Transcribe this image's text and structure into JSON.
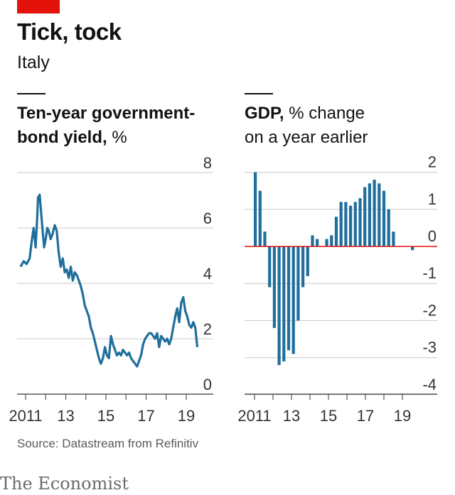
{
  "header": {
    "title": "Tick, tock",
    "subtitle": "Italy"
  },
  "footer": {
    "source": "Source: Datastream from Refinitiv",
    "brand": "The Economist"
  },
  "colors": {
    "accent": "#e3120b",
    "series": "#1f6e9c",
    "zero_line": "#e3120b",
    "grid": "#c8c8c8"
  },
  "chart_data": [
    {
      "type": "line",
      "title_bold": "Ten-year government-",
      "title_bold2": "bond yield,",
      "title_unit": "%",
      "xlabel": "",
      "ylabel": "",
      "x_ticks": [
        "2011",
        "13",
        "15",
        "17",
        "19"
      ],
      "y_ticks": [
        "0",
        "2",
        "4",
        "6",
        "8"
      ],
      "xlim": [
        2010.75,
        2019.75
      ],
      "ylim": [
        0,
        8
      ],
      "grid": true,
      "x": [
        2010.75,
        2010.9,
        2011.05,
        2011.2,
        2011.3,
        2011.4,
        2011.5,
        2011.58,
        2011.62,
        2011.7,
        2011.78,
        2011.85,
        2011.92,
        2012.0,
        2012.08,
        2012.15,
        2012.25,
        2012.35,
        2012.45,
        2012.55,
        2012.65,
        2012.75,
        2012.85,
        2012.95,
        2013.05,
        2013.15,
        2013.25,
        2013.35,
        2013.45,
        2013.55,
        2013.65,
        2013.75,
        2013.85,
        2013.95,
        2014.05,
        2014.15,
        2014.25,
        2014.35,
        2014.45,
        2014.55,
        2014.65,
        2014.75,
        2014.85,
        2014.95,
        2015.05,
        2015.15,
        2015.25,
        2015.35,
        2015.45,
        2015.55,
        2015.65,
        2015.75,
        2015.85,
        2015.95,
        2016.05,
        2016.15,
        2016.25,
        2016.35,
        2016.45,
        2016.55,
        2016.65,
        2016.75,
        2016.85,
        2016.95,
        2017.05,
        2017.15,
        2017.25,
        2017.35,
        2017.45,
        2017.55,
        2017.65,
        2017.75,
        2017.85,
        2017.95,
        2018.05,
        2018.15,
        2018.25,
        2018.35,
        2018.45,
        2018.55,
        2018.65,
        2018.75,
        2018.85,
        2018.95,
        2019.05,
        2019.15,
        2019.25,
        2019.35,
        2019.45,
        2019.55
      ],
      "values": [
        4.6,
        4.8,
        4.7,
        4.9,
        5.5,
        6.0,
        5.3,
        6.4,
        7.1,
        7.2,
        6.5,
        5.9,
        5.3,
        5.6,
        6.0,
        5.9,
        5.6,
        5.8,
        6.1,
        5.9,
        5.1,
        4.6,
        4.9,
        4.4,
        4.5,
        4.2,
        4.6,
        4.1,
        4.4,
        4.3,
        4.1,
        3.9,
        3.6,
        3.2,
        3.0,
        2.8,
        2.4,
        2.2,
        1.9,
        1.6,
        1.3,
        1.1,
        1.3,
        1.7,
        1.4,
        1.3,
        2.1,
        1.8,
        1.6,
        1.4,
        1.5,
        1.4,
        1.6,
        1.5,
        1.4,
        1.5,
        1.3,
        1.2,
        1.1,
        1.0,
        1.2,
        1.4,
        1.8,
        2.0,
        2.1,
        2.2,
        2.2,
        2.1,
        2.0,
        2.2,
        1.7,
        2.1,
        2.0,
        1.9,
        2.0,
        1.8,
        2.0,
        2.4,
        2.8,
        3.1,
        2.6,
        3.3,
        3.5,
        3.0,
        2.8,
        2.5,
        2.4,
        2.6,
        2.4,
        1.7
      ]
    },
    {
      "type": "bar",
      "title_bold": "GDP,",
      "title_rest": "% change",
      "title_line2": "on a year earlier",
      "xlabel": "",
      "ylabel": "",
      "x_ticks": [
        "2011",
        "13",
        "15",
        "17",
        "19"
      ],
      "y_ticks": [
        "2",
        "1",
        "0",
        "-1",
        "-2",
        "-3",
        "-4"
      ],
      "ylim": [
        -4,
        2
      ],
      "grid": true,
      "categories": [
        "2011Q1",
        "2011Q2",
        "2011Q3",
        "2011Q4",
        "2012Q1",
        "2012Q2",
        "2012Q3",
        "2012Q4",
        "2013Q1",
        "2013Q2",
        "2013Q3",
        "2013Q4",
        "2014Q1",
        "2014Q2",
        "2014Q3",
        "2014Q4",
        "2015Q1",
        "2015Q2",
        "2015Q3",
        "2015Q4",
        "2016Q1",
        "2016Q2",
        "2016Q3",
        "2016Q4",
        "2017Q1",
        "2017Q2",
        "2017Q3",
        "2017Q4",
        "2018Q1",
        "2018Q2",
        "2018Q3",
        "2018Q4",
        "2019Q1",
        "2019Q2"
      ],
      "values": [
        2.0,
        1.5,
        0.4,
        -1.1,
        -2.2,
        -3.2,
        -3.1,
        -2.8,
        -2.9,
        -2.0,
        -1.1,
        -0.8,
        0.3,
        0.2,
        0.0,
        0.2,
        0.3,
        0.8,
        1.2,
        1.2,
        1.1,
        1.2,
        1.3,
        1.6,
        1.7,
        1.8,
        1.7,
        1.5,
        1.0,
        0.4,
        0.0,
        0.0,
        0.0,
        -0.1
      ]
    }
  ]
}
